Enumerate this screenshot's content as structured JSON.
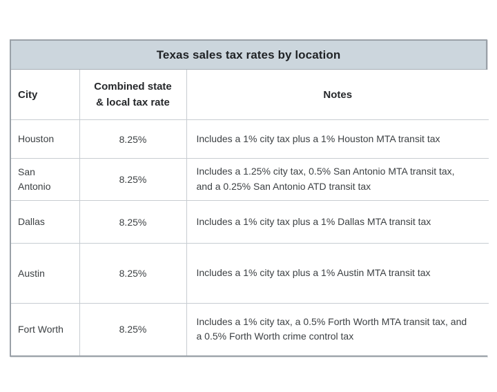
{
  "table": {
    "title": "Texas sales tax rates by location",
    "columns": {
      "city": "City",
      "rate": "Combined state & local tax rate",
      "notes": "Notes"
    },
    "rows": [
      {
        "city": "Houston",
        "rate": "8.25%",
        "notes": "Includes a 1% city tax plus a 1% Houston MTA transit tax"
      },
      {
        "city": "San Antonio",
        "rate": "8.25%",
        "notes": "Includes a 1.25% city tax, 0.5% San Antonio MTA transit tax, and a 0.25% San Antonio ATD transit tax"
      },
      {
        "city": "Dallas",
        "rate": "8.25%",
        "notes": "Includes a 1% city tax plus a 1% Dallas MTA transit tax"
      },
      {
        "city": "Austin",
        "rate": "8.25%",
        "notes": "Includes a 1% city tax plus a 1% Austin MTA transit tax"
      },
      {
        "city": "Fort Worth",
        "rate": "8.25%",
        "notes": "Includes a 1% city tax, a 0.5% Forth Worth MTA transit tax, and a 0.5% Forth Worth crime control tax"
      }
    ]
  },
  "colors": {
    "title_bar_background": "#ccd6dd",
    "outer_border": "#9aa1a8",
    "inner_border": "#c7ccd1",
    "text": "#3c4043"
  },
  "chart_data": {
    "type": "table",
    "title": "Texas sales tax rates by location",
    "columns": [
      "City",
      "Combined state & local tax rate",
      "Notes"
    ],
    "rows": [
      [
        "Houston",
        "8.25%",
        "Includes a 1% city tax plus a 1% Houston MTA transit tax"
      ],
      [
        "San Antonio",
        "8.25%",
        "Includes a 1.25% city tax, 0.5% San Antonio MTA transit tax, and a 0.25% San Antonio ATD transit tax"
      ],
      [
        "Dallas",
        "8.25%",
        "Includes a 1% city tax plus a 1% Dallas MTA transit tax"
      ],
      [
        "Austin",
        "8.25%",
        "Includes a 1% city tax plus a 1% Austin MTA transit tax"
      ],
      [
        "Fort Worth",
        "8.25%",
        "Includes a 1% city tax, a 0.5% Forth Worth MTA transit tax, and a 0.5% Forth Worth crime control tax"
      ]
    ]
  }
}
